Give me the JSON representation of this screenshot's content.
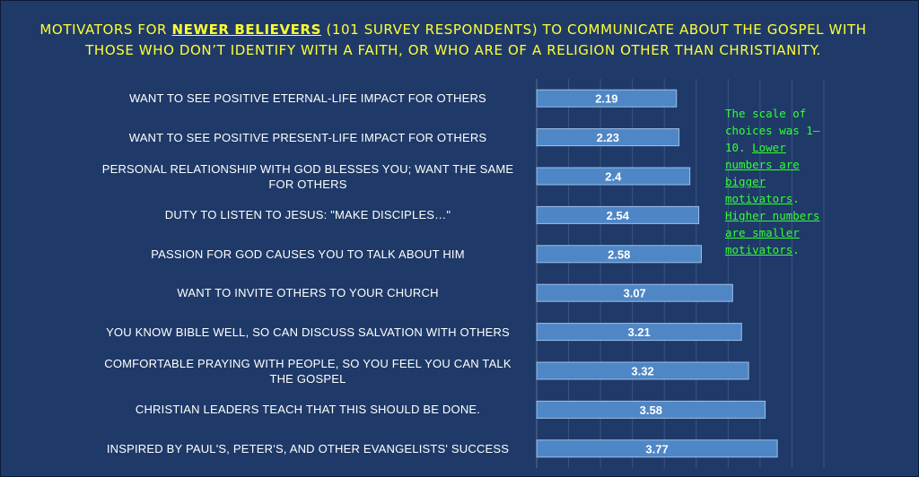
{
  "title": {
    "before": "MOTIVATORS FOR ",
    "highlight": "NEWER BELIEVERS",
    "after": " (101 SURVEY RESPONDENTS) TO COMMUNICATE ABOUT THE GOSPEL WITH THOSE WHO DON’T IDENTIFY WITH A FAITH, OR WHO ARE OF A RELIGION OTHER THAN CHRISTIANITY."
  },
  "note": {
    "plain": "The scale of choices was 1—10. ",
    "underlined": "Lower numbers are bigger motivators",
    "middle": ". ",
    "underlined2": "Higher numbers are smaller motivators",
    "end": "."
  },
  "colors": {
    "background": "#1f3a68",
    "bar": "#4f86c6",
    "title": "#ffff33",
    "note": "#33ff33"
  },
  "chart_data": {
    "type": "bar",
    "orientation": "horizontal",
    "categories": [
      "WANT TO SEE POSITIVE ETERNAL-LIFE IMPACT FOR OTHERS",
      "WANT TO SEE POSITIVE PRESENT-LIFE IMPACT FOR OTHERS",
      "PERSONAL RELATIONSHIP WITH GOD BLESSES YOU; WANT THE SAME FOR OTHERS",
      "DUTY TO LISTEN TO JESUS: \"MAKE DISCIPLES…\"",
      "PASSION FOR GOD CAUSES YOU TO TALK ABOUT HIM",
      "WANT TO INVITE OTHERS TO YOUR CHURCH",
      "YOU KNOW BIBLE WELL, SO CAN DISCUSS SALVATION WITH OTHERS",
      "COMFORTABLE PRAYING WITH PEOPLE, SO YOU FEEL YOU CAN TALK THE GOSPEL",
      "CHRISTIAN LEADERS TEACH THAT THIS SHOULD BE DONE.",
      "INSPIRED BY PAUL'S, PETER'S, AND OTHER EVANGELISTS' SUCCESS"
    ],
    "values": [
      2.19,
      2.23,
      2.4,
      2.54,
      2.58,
      3.07,
      3.21,
      3.32,
      3.58,
      3.77
    ],
    "data_labels": [
      "2.19",
      "2.23",
      "2.4",
      "2.54",
      "2.58",
      "3.07",
      "3.21",
      "3.32",
      "3.58",
      "3.77"
    ],
    "xlim": [
      0,
      4.5
    ],
    "grid": true,
    "legend": "none"
  }
}
